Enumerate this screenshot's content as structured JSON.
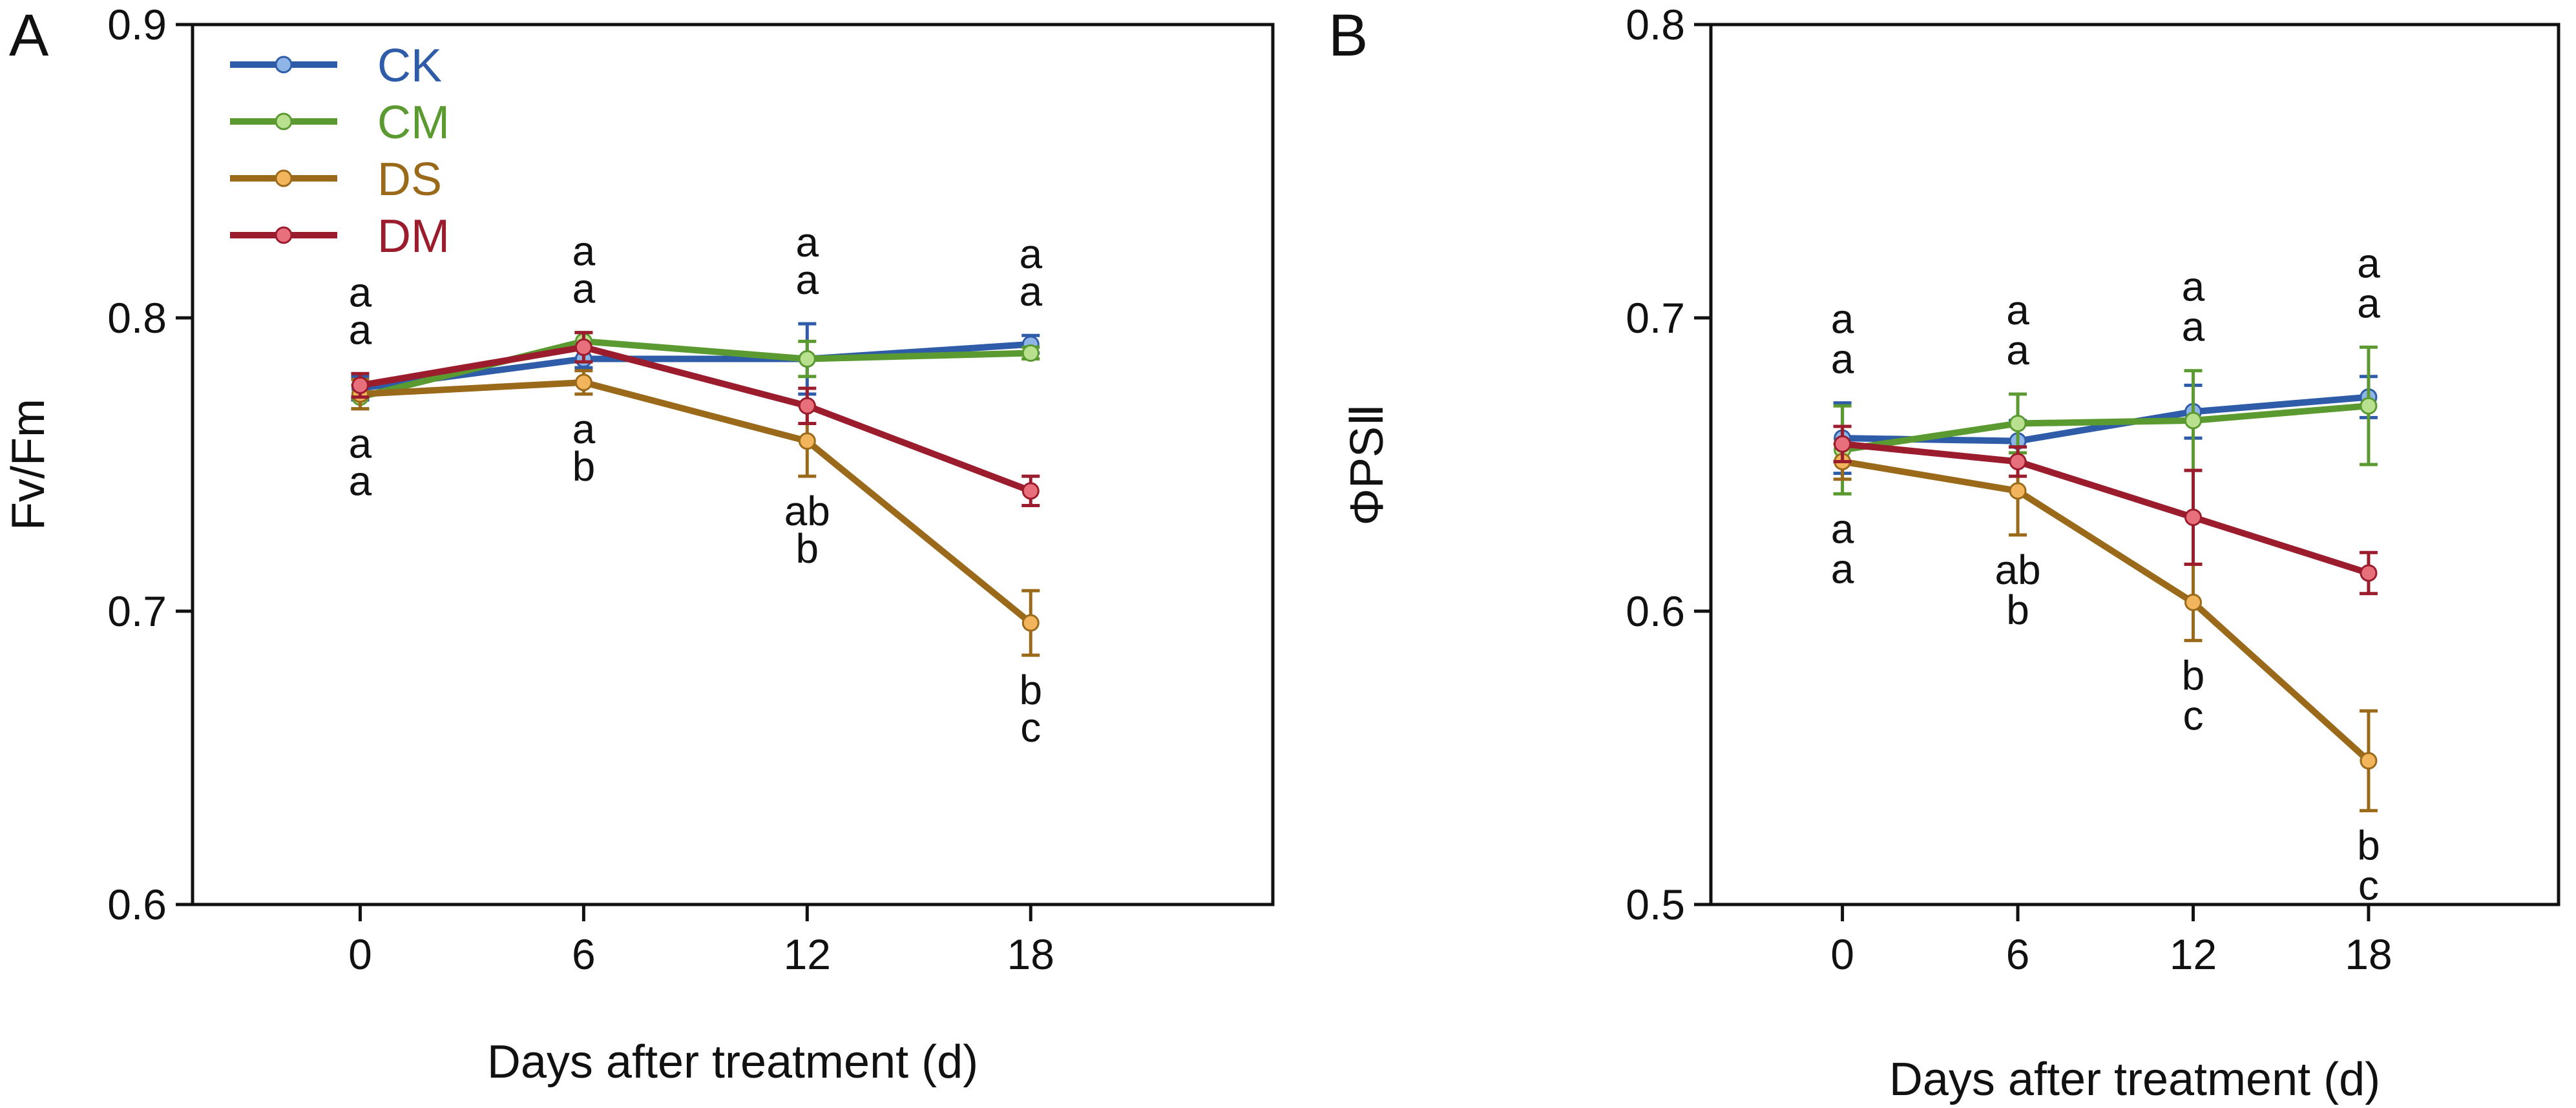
{
  "chart_data": [
    {
      "type": "line",
      "panel_label": "A",
      "xlabel": "Days after treatment (d)",
      "ylabel": "Fv/Fm",
      "x": [
        0,
        6,
        12,
        18
      ],
      "x_tick_labels": [
        "0",
        "6",
        "12",
        "18"
      ],
      "xlim": [
        -4.5,
        24.5
      ],
      "ylim": [
        0.6,
        0.9
      ],
      "y_ticks": [
        0.6,
        0.7,
        0.8,
        0.9
      ],
      "y_tick_labels": [
        "0.6",
        "0.7",
        "0.8",
        "0.9"
      ],
      "legend_position": "top-left",
      "series": [
        {
          "name": "CK",
          "color": "#2e5ca8",
          "marker_color": "#8fb4e6",
          "values": [
            0.776,
            0.786,
            0.786,
            0.791
          ],
          "errors": [
            0.004,
            0.003,
            0.012,
            0.003
          ]
        },
        {
          "name": "CM",
          "color": "#5b9a31",
          "marker_color": "#b8e08f",
          "values": [
            0.773,
            0.792,
            0.786,
            0.788
          ],
          "errors": [
            0.004,
            0.003,
            0.006,
            0.002
          ]
        },
        {
          "name": "DS",
          "color": "#9a6a1a",
          "marker_color": "#f2b55c",
          "values": [
            0.774,
            0.778,
            0.758,
            0.696
          ],
          "errors": [
            0.005,
            0.004,
            0.012,
            0.011
          ]
        },
        {
          "name": "DM",
          "color": "#9b1c2c",
          "marker_color": "#e8707c",
          "values": [
            0.777,
            0.79,
            0.77,
            0.741
          ],
          "errors": [
            0.004,
            0.005,
            0.006,
            0.005
          ]
        }
      ],
      "significance_labels": [
        {
          "x": 0,
          "above": [
            "a",
            "a"
          ],
          "below": [
            "a",
            "a"
          ]
        },
        {
          "x": 6,
          "above": [
            "a",
            "a"
          ],
          "below": [
            "a",
            "b"
          ]
        },
        {
          "x": 12,
          "above": [
            "a",
            "a"
          ],
          "below": [
            "ab",
            "b"
          ]
        },
        {
          "x": 18,
          "above": [
            "a",
            "a"
          ],
          "below": [
            "b",
            "c"
          ]
        }
      ]
    },
    {
      "type": "line",
      "panel_label": "B",
      "xlabel": "Days after treatment (d)",
      "ylabel": "ΦPSⅡ",
      "x": [
        0,
        6,
        12,
        18
      ],
      "x_tick_labels": [
        "0",
        "6",
        "12",
        "18"
      ],
      "xlim": [
        -4.5,
        24.5
      ],
      "ylim": [
        0.5,
        0.8
      ],
      "y_ticks": [
        0.5,
        0.6,
        0.7,
        0.8
      ],
      "y_tick_labels": [
        "0.5",
        "0.6",
        "0.7",
        "0.8"
      ],
      "series": [
        {
          "name": "CK",
          "color": "#2e5ca8",
          "marker_color": "#8fb4e6",
          "values": [
            0.659,
            0.658,
            0.668,
            0.673
          ],
          "errors": [
            0.012,
            0.007,
            0.009,
            0.007
          ]
        },
        {
          "name": "CM",
          "color": "#5b9a31",
          "marker_color": "#b8e08f",
          "values": [
            0.655,
            0.664,
            0.665,
            0.67
          ],
          "errors": [
            0.015,
            0.01,
            0.017,
            0.02
          ]
        },
        {
          "name": "DS",
          "color": "#9a6a1a",
          "marker_color": "#f2b55c",
          "values": [
            0.651,
            0.641,
            0.603,
            0.549
          ],
          "errors": [
            0.006,
            0.015,
            0.013,
            0.017
          ]
        },
        {
          "name": "DM",
          "color": "#9b1c2c",
          "marker_color": "#e8707c",
          "values": [
            0.657,
            0.651,
            0.632,
            0.613
          ],
          "errors": [
            0.006,
            0.005,
            0.016,
            0.007
          ]
        }
      ],
      "significance_labels": [
        {
          "x": 0,
          "above": [
            "a",
            "a"
          ],
          "below": [
            "a",
            "a"
          ]
        },
        {
          "x": 6,
          "above": [
            "a",
            "a"
          ],
          "below": [
            "ab",
            "b"
          ]
        },
        {
          "x": 12,
          "above": [
            "a",
            "a"
          ],
          "below": [
            "b",
            "c"
          ]
        },
        {
          "x": 18,
          "above": [
            "a",
            "a"
          ],
          "below": [
            "b",
            "c"
          ]
        }
      ]
    }
  ]
}
